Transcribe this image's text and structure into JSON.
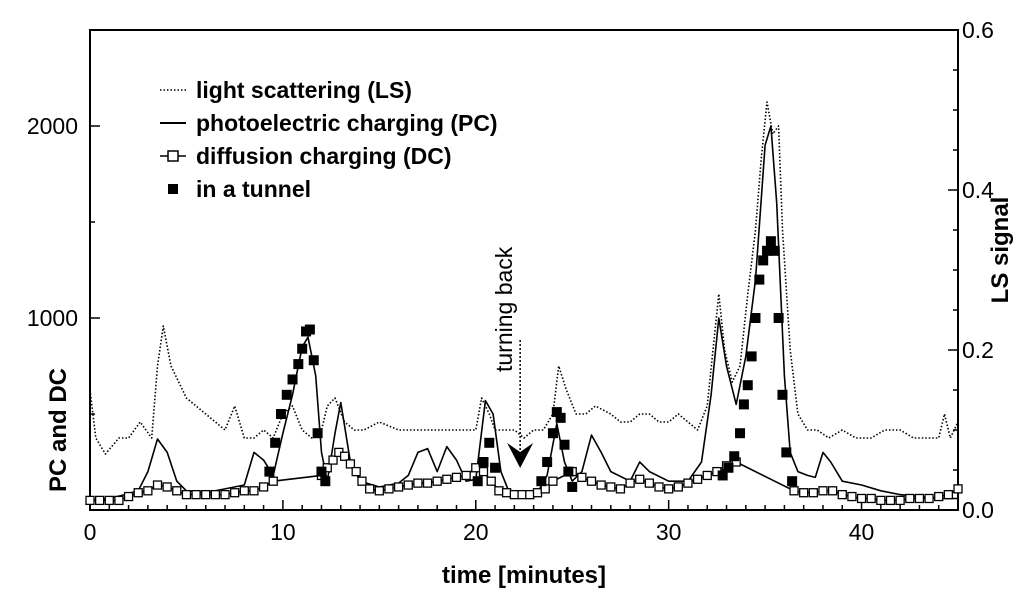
{
  "chart_data": {
    "type": "line",
    "title": "",
    "xlabel": "time [minutes]",
    "ylabel": "PC and DC",
    "y2label": "LS signal",
    "xlim": [
      0,
      45
    ],
    "ylim": [
      0,
      2500
    ],
    "y2lim": [
      0,
      0.6
    ],
    "x_ticks": [
      0,
      10,
      20,
      30,
      40
    ],
    "y_ticks": [
      1000,
      2000
    ],
    "y2_ticks": [
      "0.0",
      "0.2",
      "0.4",
      "0.6"
    ],
    "grid": false,
    "legend_position": "top-left",
    "annotation": {
      "text": "turning back",
      "x": 22.3
    },
    "series": [
      {
        "name": "light scattering (LS)",
        "axis": "right",
        "style": "dotted",
        "x": [
          0,
          0.3,
          0.8,
          1.5,
          2,
          2.6,
          3.2,
          3.5,
          3.8,
          4.2,
          4.6,
          5,
          5.5,
          6,
          6.5,
          7,
          7.5,
          8,
          8.5,
          9,
          9.5,
          10,
          10.5,
          11,
          11.5,
          12,
          12.3,
          12.7,
          13.2,
          13.7,
          14.2,
          15,
          16,
          17,
          18,
          19,
          19.5,
          20,
          20.3,
          20.7,
          21,
          21.5,
          22,
          22.5,
          23,
          23.5,
          24,
          24.3,
          24.7,
          25.2,
          25.7,
          26.2,
          27,
          27.5,
          28,
          28.5,
          29,
          29.5,
          30,
          30.5,
          31,
          31.5,
          32,
          32.3,
          32.6,
          32.9,
          33.3,
          33.7,
          34.1,
          34.5,
          34.8,
          35.1,
          35.4,
          35.7,
          35.9,
          36.3,
          36.7,
          37.2,
          37.7,
          38.3,
          39,
          39.7,
          40.5,
          41.2,
          42,
          42.7,
          43.4,
          44,
          44.3,
          44.6,
          45
        ],
        "y": [
          0.15,
          0.09,
          0.07,
          0.09,
          0.09,
          0.11,
          0.09,
          0.18,
          0.23,
          0.18,
          0.16,
          0.14,
          0.13,
          0.12,
          0.11,
          0.1,
          0.13,
          0.09,
          0.09,
          0.1,
          0.09,
          0.12,
          0.13,
          0.1,
          0.09,
          0.1,
          0.13,
          0.14,
          0.11,
          0.1,
          0.1,
          0.11,
          0.1,
          0.1,
          0.1,
          0.1,
          0.1,
          0.1,
          0.14,
          0.12,
          0.1,
          0.1,
          0.1,
          0.09,
          0.1,
          0.1,
          0.12,
          0.18,
          0.15,
          0.12,
          0.12,
          0.13,
          0.12,
          0.11,
          0.11,
          0.12,
          0.12,
          0.11,
          0.11,
          0.12,
          0.11,
          0.1,
          0.13,
          0.2,
          0.27,
          0.2,
          0.16,
          0.18,
          0.27,
          0.35,
          0.44,
          0.51,
          0.47,
          0.48,
          0.35,
          0.2,
          0.12,
          0.1,
          0.1,
          0.09,
          0.1,
          0.09,
          0.09,
          0.1,
          0.1,
          0.09,
          0.09,
          0.09,
          0.12,
          0.09,
          0.11
        ]
      },
      {
        "name": "photoelectric charging (PC)",
        "axis": "left",
        "style": "solid",
        "x": [
          0,
          1,
          1.8,
          2.5,
          3,
          3.5,
          4,
          4.5,
          5,
          6,
          7,
          8,
          8.5,
          9,
          9.5,
          10,
          10.5,
          11,
          11.3,
          11.7,
          12,
          12.3,
          12.7,
          13,
          13.5,
          14,
          15,
          16,
          16.5,
          17,
          17.5,
          18,
          18.5,
          19,
          19.5,
          20,
          20.5,
          20.9,
          21.3,
          21.7,
          22.2,
          22.7,
          23.2,
          23.7,
          24.2,
          24.6,
          25,
          25.5,
          26,
          26.5,
          27,
          28,
          28.5,
          29,
          30,
          31,
          31.7,
          32.2,
          32.6,
          33,
          33.5,
          34,
          34.5,
          35,
          35.3,
          35.6,
          36,
          36.3,
          36.7,
          37.2,
          37.6,
          38,
          38.4,
          39,
          40,
          41,
          42,
          43,
          44,
          45
        ],
        "y": [
          50,
          60,
          80,
          100,
          200,
          370,
          300,
          150,
          100,
          90,
          110,
          130,
          300,
          260,
          180,
          400,
          600,
          850,
          900,
          700,
          300,
          150,
          400,
          560,
          250,
          150,
          120,
          140,
          180,
          300,
          320,
          200,
          330,
          260,
          150,
          160,
          570,
          500,
          200,
          100,
          80,
          80,
          90,
          180,
          450,
          250,
          150,
          200,
          390,
          300,
          200,
          150,
          250,
          200,
          150,
          150,
          250,
          600,
          1000,
          750,
          550,
          800,
          1200,
          1900,
          2000,
          1600,
          700,
          300,
          200,
          180,
          170,
          300,
          250,
          150,
          130,
          100,
          80,
          70,
          60,
          60
        ]
      },
      {
        "name": "diffusion charging (DC)",
        "axis": "left",
        "style": "open-square",
        "x": [
          0,
          0.5,
          1,
          1.5,
          2,
          2.5,
          3,
          3.5,
          4,
          4.5,
          5,
          5.5,
          6,
          6.5,
          7,
          7.5,
          8,
          8.5,
          9,
          9.5,
          12,
          12.3,
          12.6,
          12.9,
          13.2,
          13.5,
          13.8,
          14.1,
          14.5,
          15,
          15.5,
          16,
          16.5,
          17,
          17.5,
          18,
          18.5,
          19,
          19.5,
          20,
          20.4,
          20.8,
          21.2,
          21.6,
          22,
          22.4,
          22.8,
          23.2,
          23.6,
          24,
          25,
          25.5,
          26,
          26.5,
          27,
          27.5,
          28,
          28.5,
          29,
          29.5,
          30,
          30.5,
          31,
          31.5,
          32,
          32.5,
          33,
          33.5,
          36.5,
          37,
          37.5,
          38,
          38.5,
          39,
          39.5,
          40,
          40.5,
          41,
          41.5,
          42,
          42.5,
          43,
          43.5,
          44,
          44.5,
          45
        ],
        "y": [
          50,
          50,
          50,
          50,
          70,
          90,
          100,
          130,
          120,
          100,
          80,
          80,
          80,
          80,
          80,
          90,
          100,
          100,
          120,
          150,
          180,
          220,
          260,
          300,
          280,
          240,
          200,
          150,
          110,
          100,
          110,
          120,
          130,
          140,
          140,
          150,
          160,
          170,
          180,
          220,
          200,
          150,
          100,
          90,
          80,
          80,
          80,
          90,
          110,
          150,
          200,
          170,
          150,
          130,
          120,
          110,
          140,
          160,
          140,
          120,
          110,
          120,
          140,
          160,
          180,
          200,
          230,
          250,
          100,
          90,
          90,
          100,
          100,
          80,
          70,
          60,
          60,
          50,
          50,
          50,
          60,
          60,
          60,
          70,
          80,
          110
        ]
      },
      {
        "name": "in a tunnel",
        "axis": "left",
        "style": "filled-square",
        "x": [
          9.3,
          9.6,
          9.9,
          10.2,
          10.5,
          10.8,
          11,
          11.2,
          11.4,
          11.6,
          11.8,
          12,
          12.2,
          20.1,
          20.4,
          20.7,
          21,
          23.4,
          23.7,
          24,
          24.2,
          24.4,
          24.6,
          24.8,
          25,
          32.8,
          33.1,
          33.4,
          33.7,
          33.9,
          34.1,
          34.3,
          34.5,
          34.7,
          34.9,
          35.1,
          35.3,
          35.5,
          35.7,
          35.9,
          36.1,
          36.4
        ],
        "y": [
          200,
          350,
          500,
          600,
          680,
          760,
          840,
          930,
          940,
          780,
          400,
          200,
          150,
          150,
          250,
          350,
          220,
          150,
          250,
          400,
          510,
          480,
          340,
          200,
          120,
          180,
          220,
          280,
          400,
          550,
          650,
          800,
          1000,
          1200,
          1300,
          1350,
          1400,
          1350,
          1000,
          600,
          300,
          150
        ]
      }
    ]
  }
}
